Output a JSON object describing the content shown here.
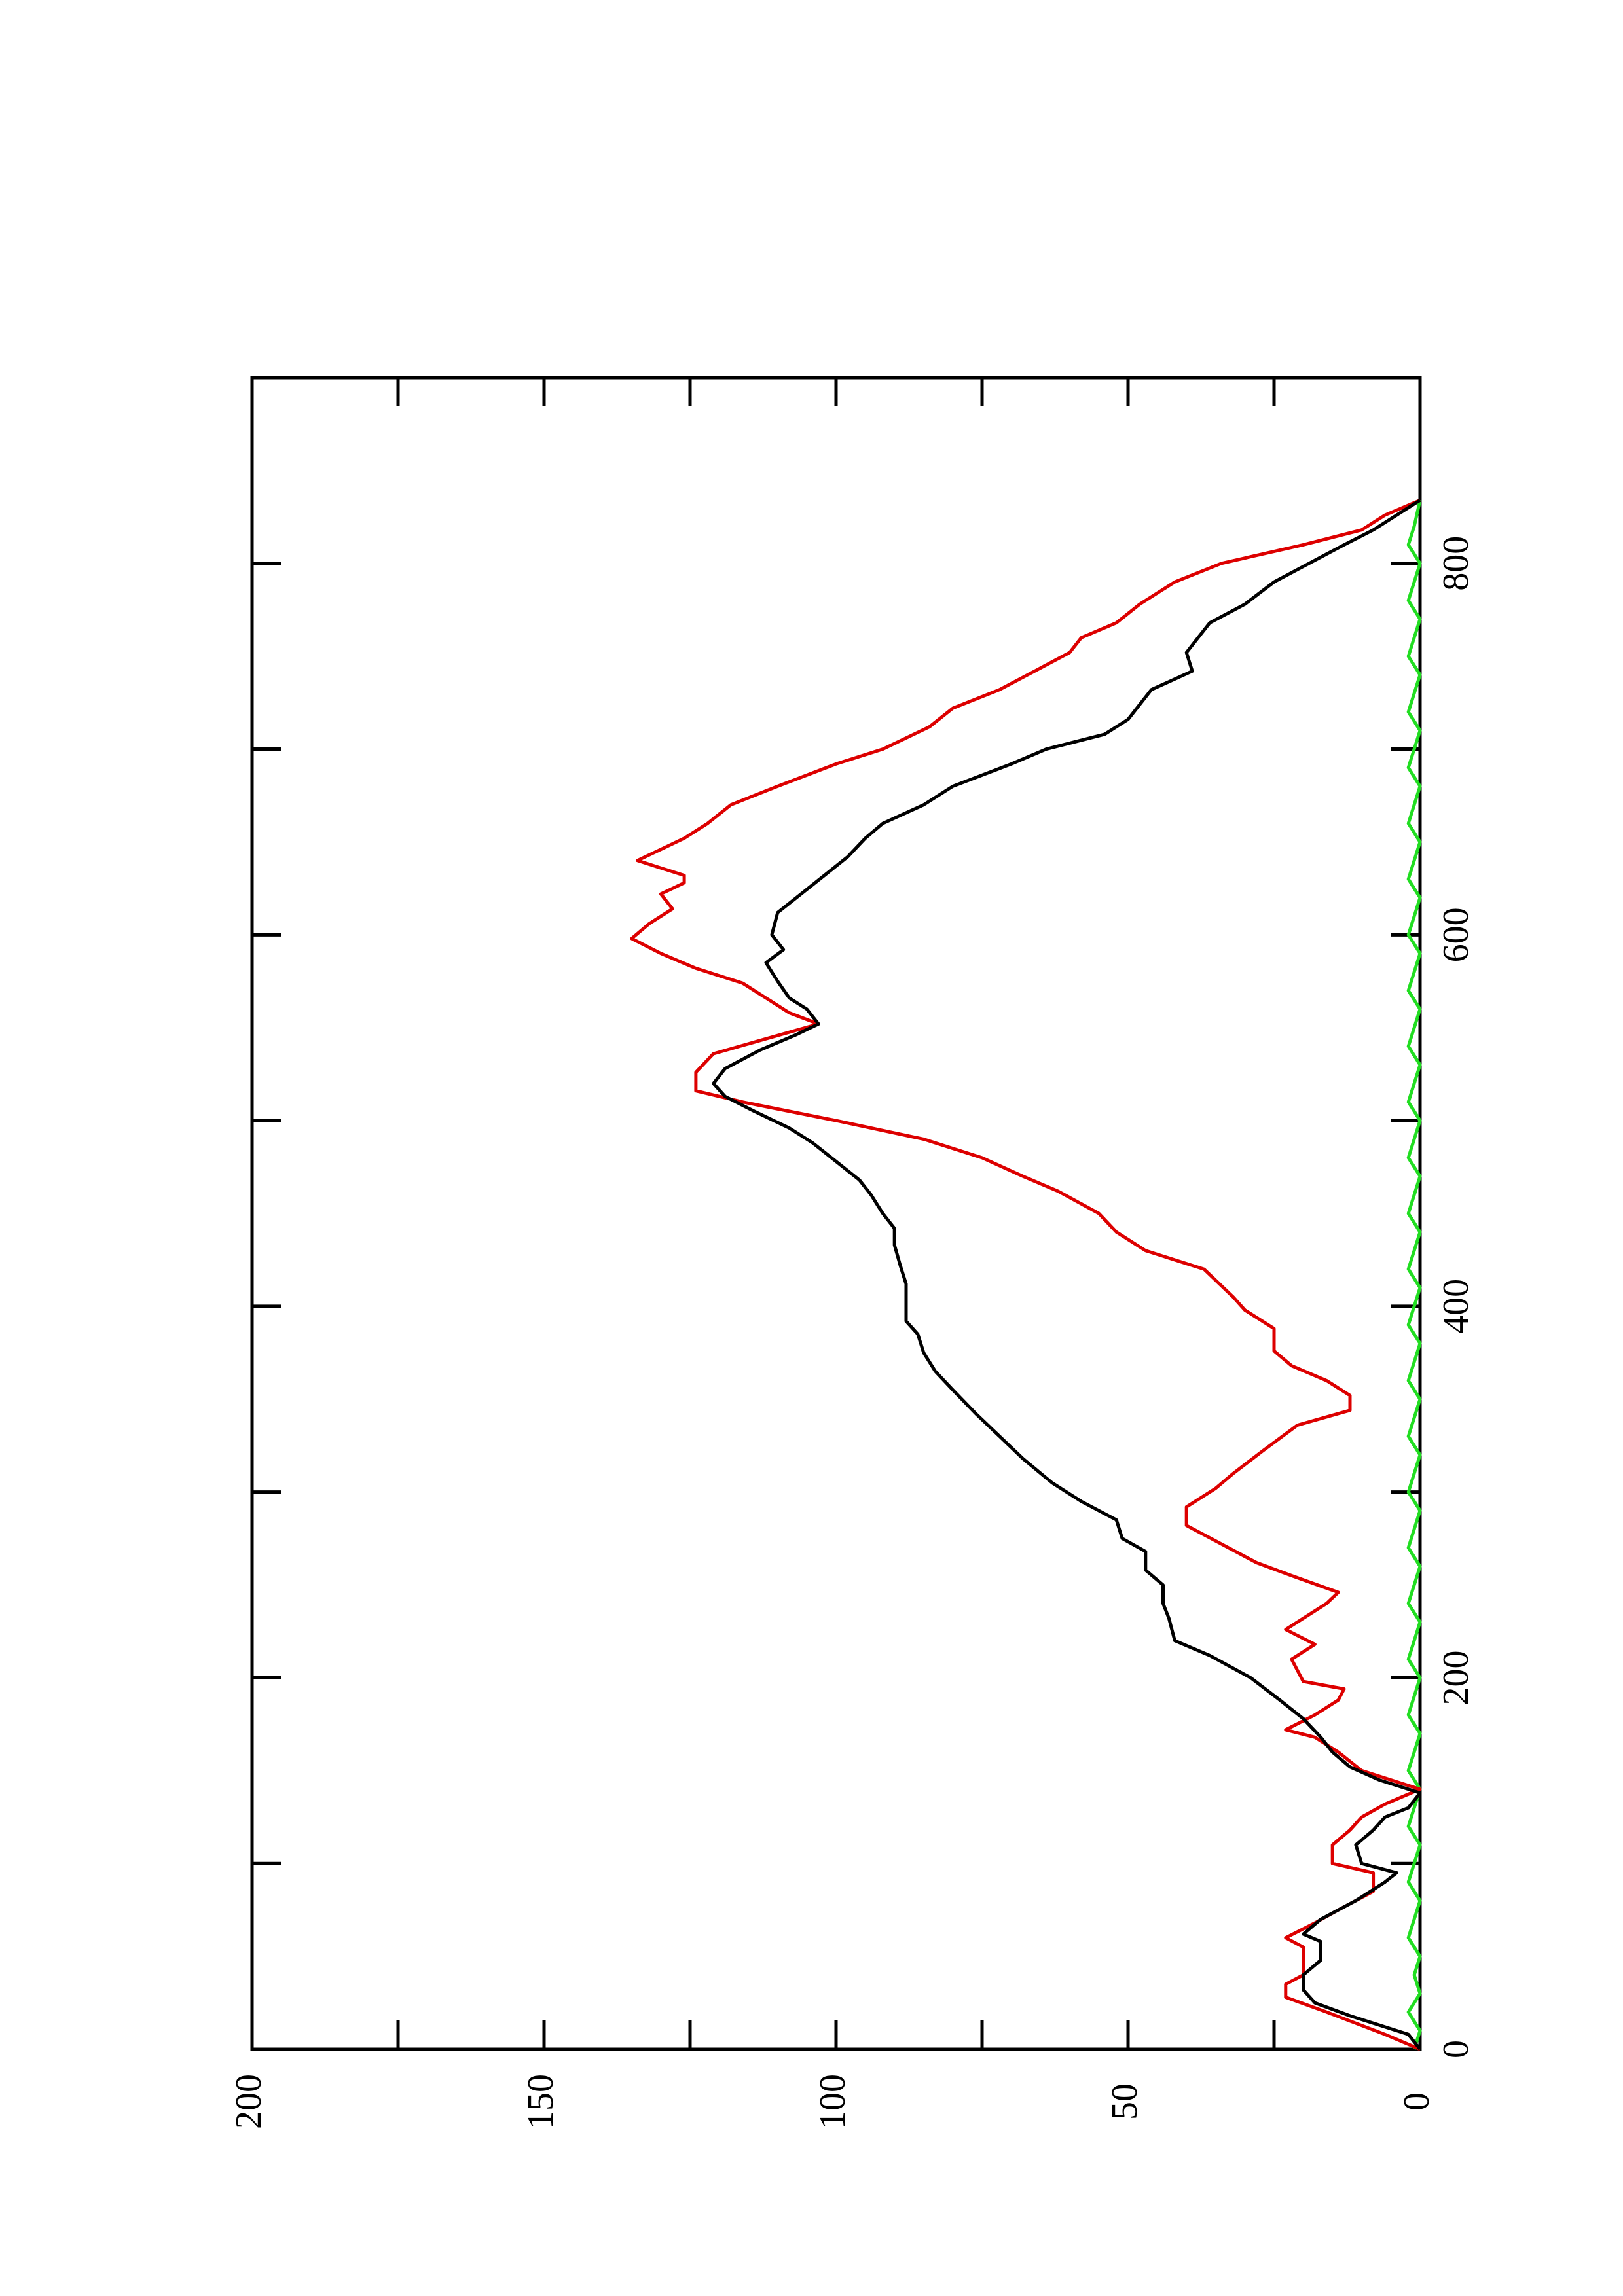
{
  "chart_data": {
    "type": "line",
    "title": "",
    "xlabel": "",
    "ylabel": "",
    "orientation": "rotated-90-ccw",
    "xlim": [
      0,
      900
    ],
    "ylim": [
      0,
      200
    ],
    "x_ticks": [
      {
        "value": 0,
        "label": "0"
      },
      {
        "value": 200,
        "label": "200"
      },
      {
        "value": 400,
        "label": "400"
      },
      {
        "value": 600,
        "label": "600"
      },
      {
        "value": 800,
        "label": "800"
      }
    ],
    "x_minor_ticks": [
      100,
      300,
      500,
      700
    ],
    "y_ticks": [
      {
        "value": 0,
        "label": "0"
      },
      {
        "value": 50,
        "label": "50"
      },
      {
        "value": 100,
        "label": "100"
      },
      {
        "value": 150,
        "label": "150"
      },
      {
        "value": 200,
        "label": "200"
      }
    ],
    "y_minor_ticks": [
      25,
      75,
      125,
      175
    ],
    "grid": false,
    "legend": "none",
    "series": [
      {
        "color": "#000000",
        "points": [
          [
            0,
            0
          ],
          [
            8,
            2
          ],
          [
            18,
            12
          ],
          [
            25,
            18
          ],
          [
            32,
            20
          ],
          [
            40,
            20
          ],
          [
            48,
            17
          ],
          [
            58,
            17
          ],
          [
            62,
            20
          ],
          [
            70,
            17
          ],
          [
            80,
            11
          ],
          [
            90,
            6
          ],
          [
            95,
            4
          ],
          [
            100,
            10
          ],
          [
            110,
            11
          ],
          [
            118,
            8
          ],
          [
            125,
            6
          ],
          [
            130,
            2
          ],
          [
            138,
            0
          ],
          [
            145,
            7
          ],
          [
            152,
            12
          ],
          [
            160,
            15
          ],
          [
            168,
            17
          ],
          [
            178,
            20
          ],
          [
            188,
            24
          ],
          [
            200,
            29
          ],
          [
            212,
            36
          ],
          [
            220,
            42
          ],
          [
            232,
            43
          ],
          [
            240,
            44
          ],
          [
            250,
            44
          ],
          [
            258,
            47
          ],
          [
            268,
            47
          ],
          [
            275,
            51
          ],
          [
            285,
            52
          ],
          [
            295,
            58
          ],
          [
            305,
            63
          ],
          [
            318,
            68
          ],
          [
            330,
            72
          ],
          [
            342,
            76
          ],
          [
            355,
            80
          ],
          [
            365,
            83
          ],
          [
            375,
            85
          ],
          [
            385,
            86
          ],
          [
            392,
            88
          ],
          [
            402,
            88
          ],
          [
            412,
            88
          ],
          [
            422,
            89
          ],
          [
            433,
            90
          ],
          [
            442,
            90
          ],
          [
            450,
            92
          ],
          [
            460,
            94
          ],
          [
            468,
            96
          ],
          [
            478,
            100
          ],
          [
            488,
            104
          ],
          [
            496,
            108
          ],
          [
            505,
            114
          ],
          [
            513,
            119
          ],
          [
            520,
            121
          ],
          [
            528,
            119
          ],
          [
            538,
            113
          ],
          [
            546,
            107
          ],
          [
            552,
            103
          ],
          [
            560,
            105
          ],
          [
            566,
            108
          ],
          [
            575,
            110
          ],
          [
            585,
            112
          ],
          [
            592,
            109
          ],
          [
            600,
            111
          ],
          [
            612,
            110
          ],
          [
            622,
            106
          ],
          [
            632,
            102
          ],
          [
            642,
            98
          ],
          [
            652,
            95
          ],
          [
            660,
            92
          ],
          [
            670,
            85
          ],
          [
            680,
            80
          ],
          [
            692,
            70
          ],
          [
            700,
            64
          ],
          [
            708,
            54
          ],
          [
            716,
            50
          ],
          [
            724,
            48
          ],
          [
            732,
            46
          ],
          [
            742,
            39
          ],
          [
            752,
            40
          ],
          [
            760,
            38
          ],
          [
            768,
            36
          ],
          [
            778,
            30
          ],
          [
            790,
            25
          ],
          [
            800,
            19
          ],
          [
            810,
            13
          ],
          [
            818,
            8
          ],
          [
            826,
            4
          ],
          [
            834,
            0
          ]
        ]
      },
      {
        "color": "#dd0000",
        "points": [
          [
            0,
            0
          ],
          [
            8,
            6
          ],
          [
            20,
            16
          ],
          [
            28,
            23
          ],
          [
            35,
            23
          ],
          [
            40,
            20
          ],
          [
            48,
            20
          ],
          [
            55,
            20
          ],
          [
            60,
            23
          ],
          [
            68,
            18
          ],
          [
            75,
            14
          ],
          [
            85,
            8
          ],
          [
            90,
            8
          ],
          [
            95,
            8
          ],
          [
            100,
            15
          ],
          [
            110,
            15
          ],
          [
            118,
            12
          ],
          [
            125,
            10
          ],
          [
            132,
            6
          ],
          [
            140,
            0
          ],
          [
            150,
            10
          ],
          [
            160,
            14
          ],
          [
            168,
            18
          ],
          [
            172,
            23
          ],
          [
            180,
            18
          ],
          [
            188,
            14
          ],
          [
            194,
            13
          ],
          [
            198,
            20
          ],
          [
            210,
            22
          ],
          [
            218,
            18
          ],
          [
            226,
            23
          ],
          [
            232,
            20
          ],
          [
            240,
            16
          ],
          [
            246,
            14
          ],
          [
            255,
            22
          ],
          [
            262,
            28
          ],
          [
            272,
            34
          ],
          [
            282,
            40
          ],
          [
            292,
            40
          ],
          [
            302,
            35
          ],
          [
            310,
            32
          ],
          [
            322,
            27
          ],
          [
            336,
            21
          ],
          [
            344,
            12
          ],
          [
            352,
            12
          ],
          [
            360,
            16
          ],
          [
            368,
            22
          ],
          [
            376,
            25
          ],
          [
            388,
            25
          ],
          [
            398,
            30
          ],
          [
            405,
            32
          ],
          [
            420,
            37
          ],
          [
            430,
            47
          ],
          [
            440,
            52
          ],
          [
            450,
            55
          ],
          [
            462,
            62
          ],
          [
            470,
            68
          ],
          [
            480,
            75
          ],
          [
            490,
            85
          ],
          [
            500,
            100
          ],
          [
            510,
            116
          ],
          [
            516,
            124
          ],
          [
            526,
            124
          ],
          [
            536,
            121
          ],
          [
            544,
            112
          ],
          [
            552,
            103
          ],
          [
            558,
            108
          ],
          [
            566,
            112
          ],
          [
            574,
            116
          ],
          [
            582,
            124
          ],
          [
            590,
            130
          ],
          [
            598,
            135
          ],
          [
            606,
            132
          ],
          [
            614,
            128
          ],
          [
            622,
            130
          ],
          [
            628,
            126
          ],
          [
            632,
            126
          ],
          [
            640,
            134
          ],
          [
            646,
            130
          ],
          [
            652,
            126
          ],
          [
            660,
            122
          ],
          [
            670,
            118
          ],
          [
            680,
            110
          ],
          [
            692,
            100
          ],
          [
            700,
            92
          ],
          [
            712,
            84
          ],
          [
            722,
            80
          ],
          [
            732,
            72
          ],
          [
            742,
            66
          ],
          [
            752,
            60
          ],
          [
            760,
            58
          ],
          [
            768,
            52
          ],
          [
            778,
            48
          ],
          [
            790,
            42
          ],
          [
            800,
            34
          ],
          [
            810,
            20
          ],
          [
            818,
            10
          ],
          [
            826,
            6
          ],
          [
            834,
            0
          ]
        ]
      },
      {
        "color": "#22dd22",
        "points": [
          [
            0,
            1
          ],
          [
            10,
            0
          ],
          [
            20,
            2
          ],
          [
            30,
            0
          ],
          [
            40,
            1
          ],
          [
            50,
            0
          ],
          [
            60,
            2
          ],
          [
            70,
            1
          ],
          [
            80,
            0
          ],
          [
            90,
            2
          ],
          [
            100,
            1
          ],
          [
            110,
            0
          ],
          [
            120,
            2
          ],
          [
            130,
            1
          ],
          [
            140,
            0
          ],
          [
            150,
            2
          ],
          [
            160,
            1
          ],
          [
            170,
            0
          ],
          [
            180,
            2
          ],
          [
            190,
            1
          ],
          [
            200,
            0
          ],
          [
            210,
            2
          ],
          [
            220,
            1
          ],
          [
            230,
            0
          ],
          [
            240,
            2
          ],
          [
            250,
            1
          ],
          [
            260,
            0
          ],
          [
            270,
            2
          ],
          [
            280,
            1
          ],
          [
            290,
            0
          ],
          [
            300,
            2
          ],
          [
            310,
            1
          ],
          [
            320,
            0
          ],
          [
            330,
            2
          ],
          [
            340,
            1
          ],
          [
            350,
            0
          ],
          [
            360,
            2
          ],
          [
            370,
            1
          ],
          [
            380,
            0
          ],
          [
            390,
            2
          ],
          [
            400,
            1
          ],
          [
            410,
            0
          ],
          [
            420,
            2
          ],
          [
            430,
            1
          ],
          [
            440,
            0
          ],
          [
            450,
            2
          ],
          [
            460,
            1
          ],
          [
            470,
            0
          ],
          [
            480,
            2
          ],
          [
            490,
            1
          ],
          [
            500,
            0
          ],
          [
            510,
            2
          ],
          [
            520,
            1
          ],
          [
            530,
            0
          ],
          [
            540,
            2
          ],
          [
            550,
            1
          ],
          [
            560,
            0
          ],
          [
            570,
            2
          ],
          [
            580,
            1
          ],
          [
            590,
            0
          ],
          [
            600,
            2
          ],
          [
            610,
            1
          ],
          [
            620,
            0
          ],
          [
            630,
            2
          ],
          [
            640,
            1
          ],
          [
            650,
            0
          ],
          [
            660,
            2
          ],
          [
            670,
            1
          ],
          [
            680,
            0
          ],
          [
            690,
            2
          ],
          [
            700,
            1
          ],
          [
            710,
            0
          ],
          [
            720,
            2
          ],
          [
            730,
            1
          ],
          [
            740,
            0
          ],
          [
            750,
            2
          ],
          [
            760,
            1
          ],
          [
            770,
            0
          ],
          [
            780,
            2
          ],
          [
            790,
            1
          ],
          [
            800,
            0
          ],
          [
            810,
            2
          ],
          [
            820,
            1
          ],
          [
            834,
            0
          ]
        ]
      }
    ]
  }
}
